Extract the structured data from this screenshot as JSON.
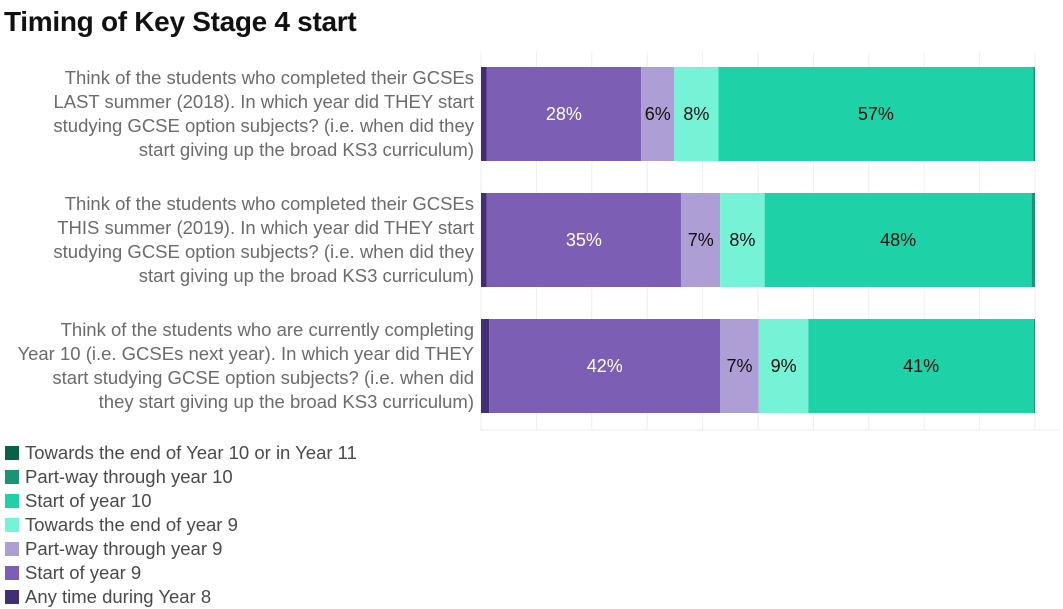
{
  "chart_data": {
    "type": "bar",
    "orientation": "horizontal",
    "stacked": true,
    "title": "Timing of Key Stage 4 start",
    "xlabel": "",
    "ylabel": "",
    "xlim": [
      0,
      100
    ],
    "grid": true,
    "legend_position": "bottom-left",
    "categories": [
      "Think of the students who completed their GCSEs LAST summer (2018). In which year did THEY start studying GCSE option subjects? (i.e. when did they start giving up the broad KS3 curriculum)",
      "Think of the students who completed their GCSEs THIS summer (2019). In which year did THEY start studying GCSE option subjects? (i.e. when did they start giving up the broad KS3 curriculum)",
      "Think of the students who are currently completing Year 10 (i.e. GCSEs next year). In which year did THEY start studying GCSE option subjects? (i.e. when did they start giving up the broad KS3 curriculum)"
    ],
    "category_lines": [
      [
        "Think of the students who completed their GCSEs",
        "LAST summer (2018). In which year did THEY start",
        "studying GCSE option subjects? (i.e. when did they",
        "start giving up the broad KS3 curriculum)"
      ],
      [
        "Think of the students who completed their GCSEs",
        "THIS summer (2019). In which year did THEY start",
        "studying GCSE option subjects? (i.e. when did they",
        "start giving up the broad KS3 curriculum)"
      ],
      [
        "Think of the students who are currently completing",
        "Year 10 (i.e. GCSEs next year). In which year did THEY",
        "start studying GCSE option subjects? (i.e. when did",
        "they start giving up the broad KS3 curriculum)"
      ]
    ],
    "series": [
      {
        "name": "Any time during Year 8",
        "color": "#412e75",
        "values": [
          1,
          1,
          1.5
        ],
        "labels": [
          "",
          "",
          ""
        ],
        "label_color": "#ffffff"
      },
      {
        "name": "Start of year 9",
        "color": "#7c5eb5",
        "values": [
          28,
          35,
          42
        ],
        "labels": [
          "28%",
          "35%",
          "42%"
        ],
        "label_color": "#ffffff"
      },
      {
        "name": "Part-way through year 9",
        "color": "#ae9ed6",
        "values": [
          6,
          7,
          7
        ],
        "labels": [
          "6%",
          "7%",
          "7%"
        ],
        "label_color": "#111111"
      },
      {
        "name": "Towards the end of year 9",
        "color": "#76f2d6",
        "values": [
          8,
          8,
          9
        ],
        "labels": [
          "8%",
          "8%",
          "9%"
        ],
        "label_color": "#111111"
      },
      {
        "name": "Start of year 10",
        "color": "#1fd1a6",
        "values": [
          57,
          48,
          41
        ],
        "labels": [
          "57%",
          "48%",
          "41%"
        ],
        "label_color": "#111111"
      },
      {
        "name": "Part-way through year 10",
        "color": "#1b9474",
        "values": [
          0.3,
          0.6,
          0.2
        ],
        "labels": [
          "",
          "",
          ""
        ],
        "label_color": "#ffffff"
      },
      {
        "name": "Towards the end of Year 10 or in Year 11",
        "color": "#0b6147",
        "values": [
          0,
          0,
          0
        ],
        "labels": [
          "",
          "",
          ""
        ],
        "label_color": "#ffffff"
      }
    ],
    "legend_order": [
      6,
      5,
      4,
      3,
      2,
      1,
      0
    ]
  }
}
